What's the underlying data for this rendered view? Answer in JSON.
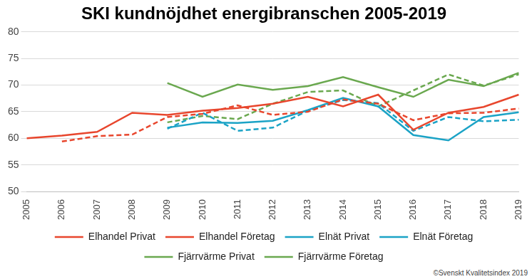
{
  "chart_data": {
    "type": "line",
    "title": "SKI kundnöjdhet energibranschen 2005-2019",
    "source": "©Svenskt Kvalitetsindex 2019",
    "categories": [
      "2005",
      "2006",
      "2007",
      "2008",
      "2009",
      "2010",
      "2011",
      "2012",
      "2013",
      "2014",
      "2015",
      "2016",
      "2017",
      "2018",
      "2019"
    ],
    "series": [
      {
        "name": "Elhandel Privat",
        "color": "#e8462d",
        "line_style": "solid",
        "values": [
          60.0,
          60.5,
          61.2,
          64.8,
          64.4,
          65.2,
          65.7,
          66.5,
          67.8,
          66.0,
          68.2,
          61.6,
          64.8,
          65.9,
          68.2
        ]
      },
      {
        "name": "Elhandel Företag",
        "color": "#e8462d",
        "line_style": "dashed",
        "values": [
          null,
          59.4,
          60.4,
          60.7,
          64.0,
          64.6,
          66.2,
          64.4,
          65.0,
          67.3,
          66.5,
          63.4,
          64.7,
          64.8,
          65.6
        ]
      },
      {
        "name": "Elnät Privat",
        "color": "#1ba3c6",
        "line_style": "solid",
        "values": [
          null,
          null,
          null,
          null,
          62.0,
          63.0,
          62.9,
          63.3,
          65.3,
          67.6,
          66.0,
          60.6,
          59.6,
          64.0,
          64.9
        ]
      },
      {
        "name": "Elnät Företag",
        "color": "#1ba3c6",
        "line_style": "dashed",
        "values": [
          null,
          null,
          null,
          null,
          61.8,
          64.8,
          61.4,
          62.0,
          65.2,
          67.2,
          66.6,
          61.4,
          64.0,
          63.2,
          63.5
        ]
      },
      {
        "name": "Fjärrvärme Privat",
        "color": "#6aa84f",
        "line_style": "solid",
        "values": [
          null,
          null,
          null,
          null,
          70.4,
          67.8,
          70.1,
          69.1,
          69.8,
          71.5,
          69.6,
          67.8,
          71.0,
          69.8,
          72.3
        ]
      },
      {
        "name": "Fjärrvärme Företag",
        "color": "#6aa84f",
        "line_style": "dashed",
        "values": [
          null,
          null,
          null,
          null,
          63.0,
          64.2,
          63.6,
          66.5,
          68.7,
          69.0,
          66.0,
          69.0,
          72.0,
          69.9,
          72.0
        ]
      }
    ],
    "ylim": [
      50,
      80
    ],
    "yticks": [
      50,
      55,
      60,
      65,
      70,
      75,
      80
    ],
    "grid": true,
    "legend": "bottom"
  }
}
